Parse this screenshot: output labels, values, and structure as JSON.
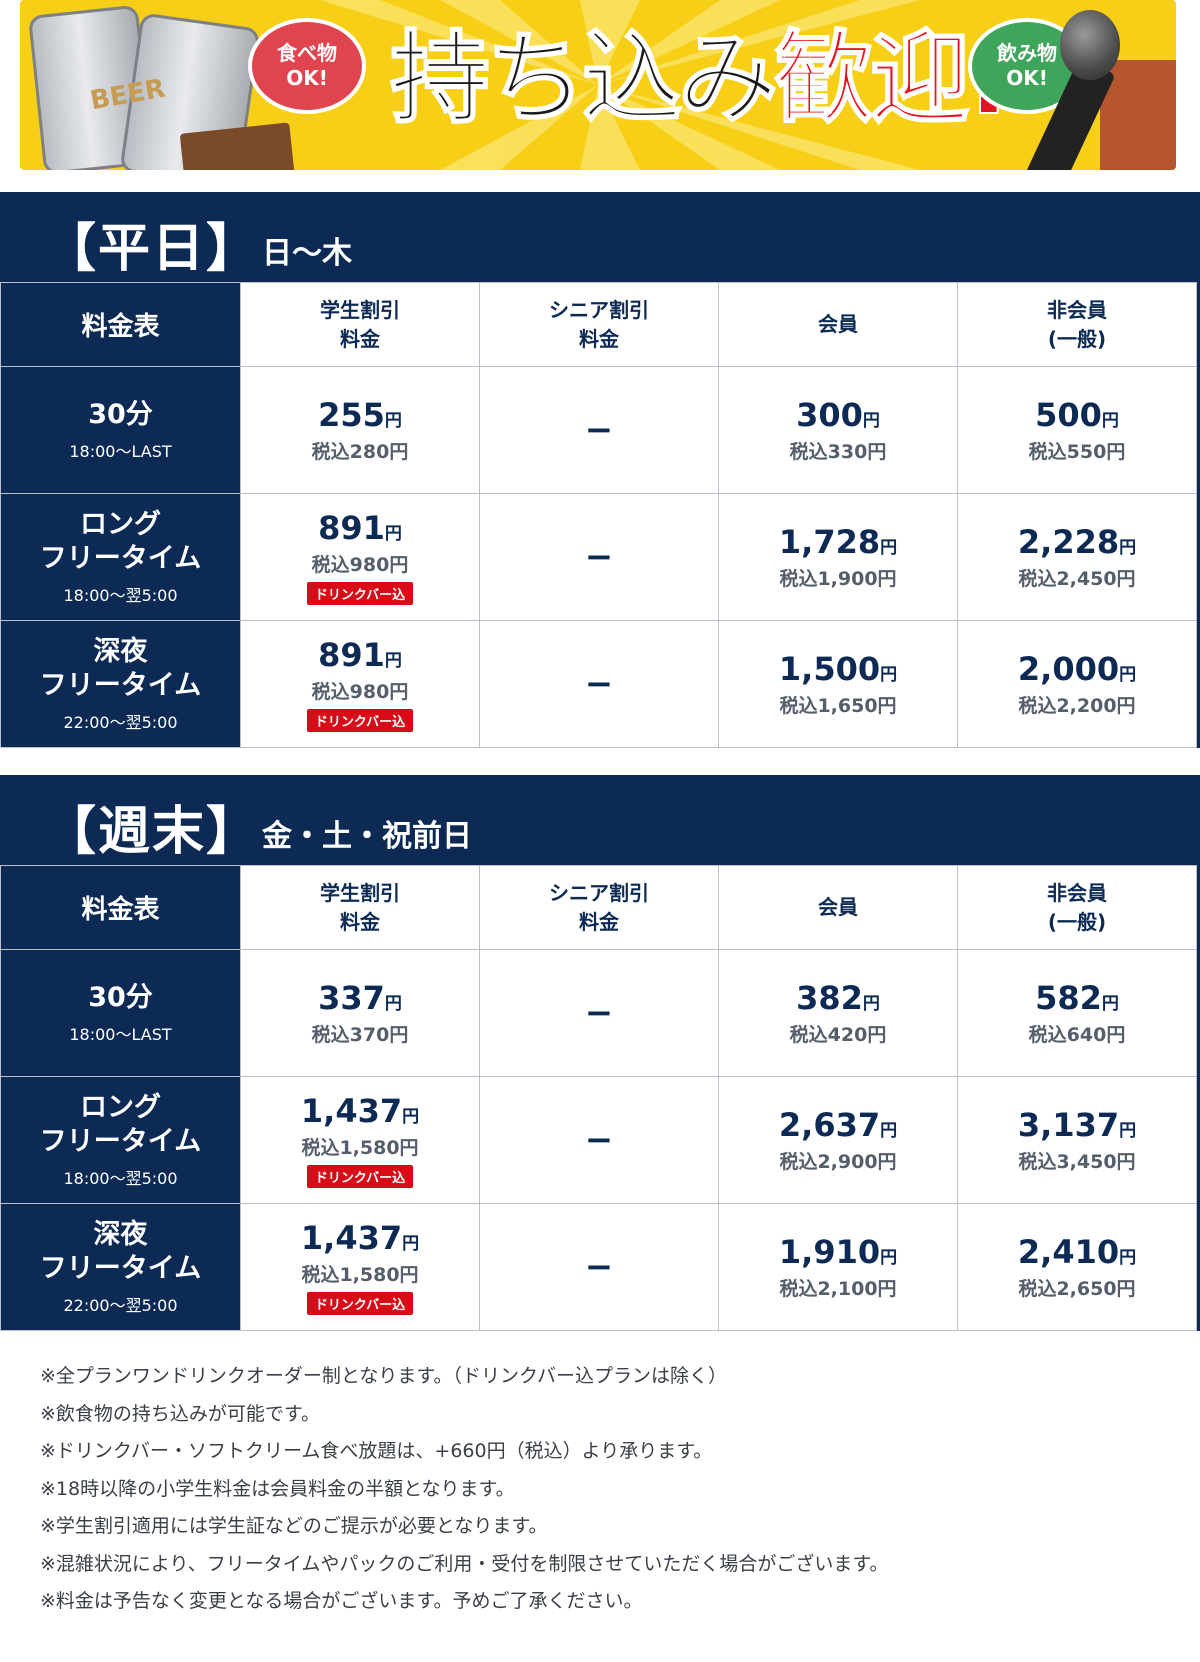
{
  "banner": {
    "bubble_left": [
      "食べ物",
      "OK!"
    ],
    "bubble_right": [
      "飲み物",
      "OK!"
    ],
    "headline_black": "持ち込み",
    "headline_red": "歓迎!",
    "can_label": "BEER"
  },
  "colors": {
    "navy": "#0c2a54",
    "badge_red": "#d70c18",
    "banner_yellow": "#f7cf17",
    "headline_red": "#e3131f"
  },
  "weekday": {
    "title": "【平日】",
    "days": "日〜木",
    "corner": "料金表",
    "columns": [
      "学生割引\n料金",
      "シニア割引\n料金",
      "会員",
      "非会員\n(一般)"
    ],
    "rows": [
      {
        "name": "30分",
        "time": "18:00〜LAST",
        "cells": [
          {
            "price": "255",
            "yen": "円",
            "tax": "税込280円",
            "badge": ""
          },
          {
            "dash": "−"
          },
          {
            "price": "300",
            "yen": "円",
            "tax": "税込330円",
            "badge": ""
          },
          {
            "price": "500",
            "yen": "円",
            "tax": "税込550円",
            "badge": ""
          }
        ]
      },
      {
        "name": "ロング\nフリータイム",
        "time": "18:00〜翌5:00",
        "cells": [
          {
            "price": "891",
            "yen": "円",
            "tax": "税込980円",
            "badge": "ドリンクバー込"
          },
          {
            "dash": "−"
          },
          {
            "price": "1,728",
            "yen": "円",
            "tax": "税込1,900円",
            "badge": ""
          },
          {
            "price": "2,228",
            "yen": "円",
            "tax": "税込2,450円",
            "badge": ""
          }
        ]
      },
      {
        "name": "深夜\nフリータイム",
        "time": "22:00〜翌5:00",
        "cells": [
          {
            "price": "891",
            "yen": "円",
            "tax": "税込980円",
            "badge": "ドリンクバー込"
          },
          {
            "dash": "−"
          },
          {
            "price": "1,500",
            "yen": "円",
            "tax": "税込1,650円",
            "badge": ""
          },
          {
            "price": "2,000",
            "yen": "円",
            "tax": "税込2,200円",
            "badge": ""
          }
        ]
      }
    ]
  },
  "weekend": {
    "title": "【週末】",
    "days": "金・土・祝前日",
    "corner": "料金表",
    "columns": [
      "学生割引\n料金",
      "シニア割引\n料金",
      "会員",
      "非会員\n(一般)"
    ],
    "rows": [
      {
        "name": "30分",
        "time": "18:00〜LAST",
        "cells": [
          {
            "price": "337",
            "yen": "円",
            "tax": "税込370円",
            "badge": ""
          },
          {
            "dash": "−"
          },
          {
            "price": "382",
            "yen": "円",
            "tax": "税込420円",
            "badge": ""
          },
          {
            "price": "582",
            "yen": "円",
            "tax": "税込640円",
            "badge": ""
          }
        ]
      },
      {
        "name": "ロング\nフリータイム",
        "time": "18:00〜翌5:00",
        "cells": [
          {
            "price": "1,437",
            "yen": "円",
            "tax": "税込1,580円",
            "badge": "ドリンクバー込"
          },
          {
            "dash": "−"
          },
          {
            "price": "2,637",
            "yen": "円",
            "tax": "税込2,900円",
            "badge": ""
          },
          {
            "price": "3,137",
            "yen": "円",
            "tax": "税込3,450円",
            "badge": ""
          }
        ]
      },
      {
        "name": "深夜\nフリータイム",
        "time": "22:00〜翌5:00",
        "cells": [
          {
            "price": "1,437",
            "yen": "円",
            "tax": "税込1,580円",
            "badge": "ドリンクバー込"
          },
          {
            "dash": "−"
          },
          {
            "price": "1,910",
            "yen": "円",
            "tax": "税込2,100円",
            "badge": ""
          },
          {
            "price": "2,410",
            "yen": "円",
            "tax": "税込2,650円",
            "badge": ""
          }
        ]
      }
    ]
  },
  "notes": [
    "※全プランワンドリンクオーダー制となります。（ドリンクバー込プランは除く）",
    "※飲食物の持ち込みが可能です。",
    "※ドリンクバー・ソフトクリーム食べ放題は、+660円（税込）より承ります。",
    "※18時以降の小学生料金は会員料金の半額となります。",
    "※学生割引適用には学生証などのご提示が必要となります。",
    "※混雑状況により、フリータイムやパックのご利用・受付を制限させていただく場合がございます。",
    "※料金は予告なく変更となる場合がございます。予めご了承ください。"
  ]
}
